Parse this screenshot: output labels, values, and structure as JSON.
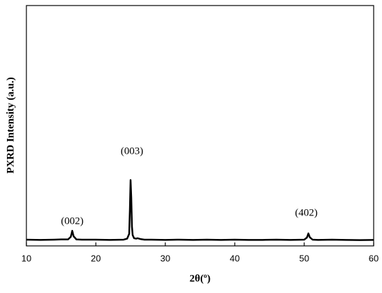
{
  "chart_data": {
    "type": "line",
    "x_label": "2θ(º)",
    "y_label": "PXRD Intensity (a.u.)",
    "xlim": [
      10,
      60
    ],
    "xticks": [
      10,
      20,
      30,
      40,
      50,
      60
    ],
    "ylim": [
      0,
      100
    ],
    "color": "#000000",
    "x": [
      10,
      12,
      14,
      15,
      16,
      16.4,
      16.6,
      16.8,
      17.2,
      18,
      20,
      22,
      24,
      24.5,
      24.8,
      24.9,
      25.0,
      25.1,
      25.2,
      25.3,
      25.5,
      25.8,
      26,
      26.5,
      27,
      28,
      30,
      32,
      34,
      36,
      38,
      40,
      42,
      44,
      46,
      48,
      50,
      50.4,
      50.6,
      50.8,
      51.2,
      52,
      54,
      56,
      58,
      60
    ],
    "values": [
      2.6,
      2.5,
      2.6,
      2.7,
      2.7,
      3.8,
      6.3,
      4,
      2.7,
      2.6,
      2.6,
      2.5,
      2.6,
      3,
      5,
      15,
      27.4,
      20,
      8,
      4.5,
      3.2,
      3,
      3.2,
      2.8,
      2.6,
      2.6,
      2.5,
      2.6,
      2.5,
      2.6,
      2.5,
      2.6,
      2.5,
      2.5,
      2.6,
      2.5,
      2.6,
      3.5,
      5.2,
      3.6,
      2.6,
      2.5,
      2.6,
      2.5,
      2.4,
      2.5
    ],
    "annotations": [
      "(002)",
      "(003)",
      "(402)"
    ]
  }
}
